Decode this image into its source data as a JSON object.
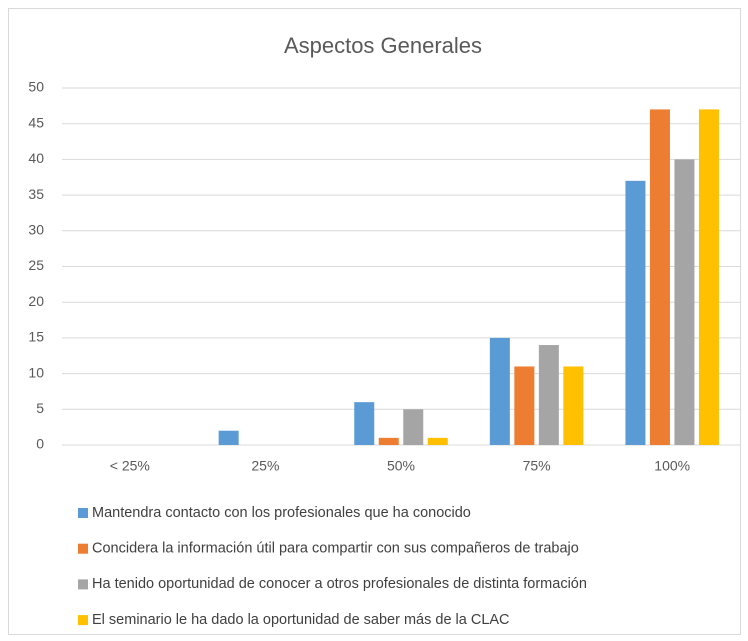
{
  "chart_data": {
    "type": "bar",
    "title": "Aspectos Generales",
    "categories": [
      "< 25%",
      "25%",
      "50%",
      "75%",
      "100%"
    ],
    "series": [
      {
        "name": "Mantendra contacto con los profesionales que ha conocido",
        "color": "#5b9bd5",
        "values": [
          0,
          2,
          6,
          15,
          37
        ]
      },
      {
        "name": "Concidera la información útil para compartir con sus compañeros de trabajo",
        "color": "#ed7d31",
        "values": [
          0,
          0,
          1,
          11,
          47
        ]
      },
      {
        "name": "Ha tenido oportunidad de conocer a otros profesionales de distinta formación",
        "color": "#a5a5a5",
        "values": [
          0,
          0,
          5,
          14,
          40
        ]
      },
      {
        "name": "El seminario le ha dado la oportunidad de saber más de la CLAC",
        "color": "#ffc000",
        "values": [
          0,
          0,
          1,
          11,
          47
        ]
      }
    ],
    "ylim": [
      0,
      50
    ],
    "yticks": [
      0,
      5,
      10,
      15,
      20,
      25,
      30,
      35,
      40,
      45,
      50
    ],
    "grid": true,
    "legend": "bottom"
  }
}
